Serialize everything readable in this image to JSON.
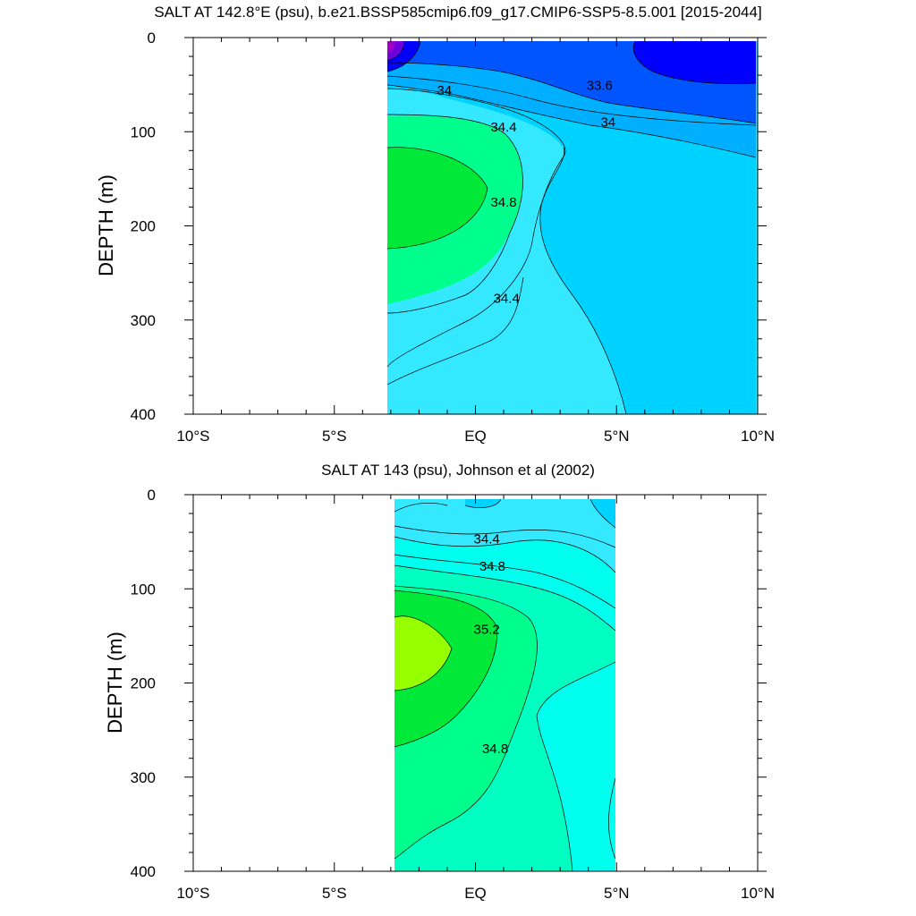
{
  "chart_data": [
    {
      "type": "contour",
      "title": "SALT AT 142.8°E (psu), b.e21.BSSP585cmip6.f09_g17.CMIP6-SSP5-8.5.001 [2015-2044]",
      "xlabel": "",
      "ylabel": "DEPTH (m)",
      "xlim": [
        -10,
        10
      ],
      "ylim": [
        400,
        0
      ],
      "x_ticks": [
        -10,
        -5,
        0,
        5,
        10
      ],
      "x_tick_labels": [
        "10°S",
        "5°S",
        "EQ",
        "5°N",
        "10°N"
      ],
      "y_ticks": [
        0,
        100,
        200,
        300,
        400
      ],
      "y_tick_labels": [
        "0",
        "100",
        "200",
        "300",
        "400"
      ],
      "data_extent": {
        "lat": [
          -3,
          10
        ],
        "depth": [
          5,
          400
        ]
      },
      "contour_levels": [
        33.2,
        33.6,
        34.0,
        34.4,
        34.8
      ],
      "contour_labels": [
        {
          "text": "34",
          "lat": -1.1,
          "depth": 56
        },
        {
          "text": "33.6",
          "lat": 4.4,
          "depth": 51
        },
        {
          "text": "34",
          "lat": 4.7,
          "depth": 90
        },
        {
          "text": "34.4",
          "lat": 1.0,
          "depth": 95
        },
        {
          "text": "34.8",
          "lat": 1.0,
          "depth": 175
        },
        {
          "text": "34.4",
          "lat": 1.1,
          "depth": 277
        }
      ],
      "colors": {
        "lt_33.0": "#a000c8",
        "33.0_33.2": "#6e00dc",
        "33.2_33.6": "#0000ff",
        "33.6_34.0": "#0055ff",
        "34.0_34.4": "#00afff",
        "34.4_34.8": "#33e8ff",
        "34.8_35.2": "#00ff8c",
        "35.2_35.6": "#00e838",
        "gt_35.6": "#96ff00",
        "mid_34.2": "#00d2ff"
      }
    },
    {
      "type": "contour",
      "title": "SALT AT 143 (psu), Johnson et al (2002)",
      "xlabel": "",
      "ylabel": "DEPTH (m)",
      "xlim": [
        -10,
        10
      ],
      "ylim": [
        400,
        0
      ],
      "x_ticks": [
        -10,
        -5,
        0,
        5,
        10
      ],
      "x_tick_labels": [
        "10°S",
        "5°S",
        "EQ",
        "5°N",
        "10°N"
      ],
      "y_ticks": [
        0,
        100,
        200,
        300,
        400
      ],
      "y_tick_labels": [
        "0",
        "100",
        "200",
        "300",
        "400"
      ],
      "data_extent": {
        "lat": [
          -2.8,
          5
        ],
        "depth": [
          5,
          400
        ]
      },
      "contour_levels": [
        34.4,
        34.6,
        34.8,
        35.0,
        35.2,
        35.4
      ],
      "contour_labels": [
        {
          "text": "34.4",
          "lat": 0.4,
          "depth": 47
        },
        {
          "text": "34.8",
          "lat": 0.6,
          "depth": 76
        },
        {
          "text": "35.2",
          "lat": 0.4,
          "depth": 143
        },
        {
          "text": "34.8",
          "lat": 0.7,
          "depth": 270
        }
      ]
    }
  ]
}
